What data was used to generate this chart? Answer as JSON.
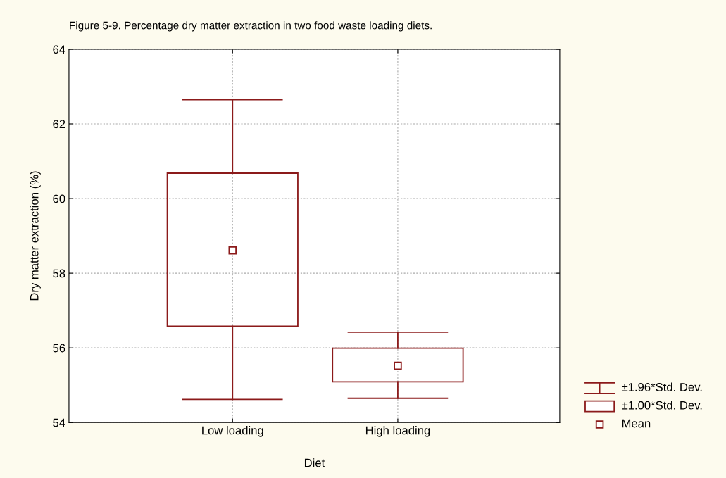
{
  "chart_data": {
    "type": "box",
    "title": "Figure 5-9. Percentage dry matter extraction in two food waste loading diets.",
    "xlabel": "Diet",
    "ylabel": "Dry matter extraction (%)",
    "categories": [
      "Low loading",
      "High loading"
    ],
    "boxes": [
      {
        "low": 54.62,
        "q1": 56.58,
        "q3": 60.68,
        "high": 62.65,
        "mean": 58.61
      },
      {
        "low": 54.65,
        "q1": 55.09,
        "q3": 55.99,
        "high": 56.42,
        "mean": 55.52
      }
    ],
    "color": "#8b1a1a",
    "ylim": [
      54,
      64
    ],
    "yticks": [
      54,
      56,
      58,
      60,
      62,
      64
    ],
    "grid": true,
    "annotations": [
      "±1.96*Std. Dev.",
      "±1.00*Std. Dev.",
      "Mean"
    ]
  }
}
